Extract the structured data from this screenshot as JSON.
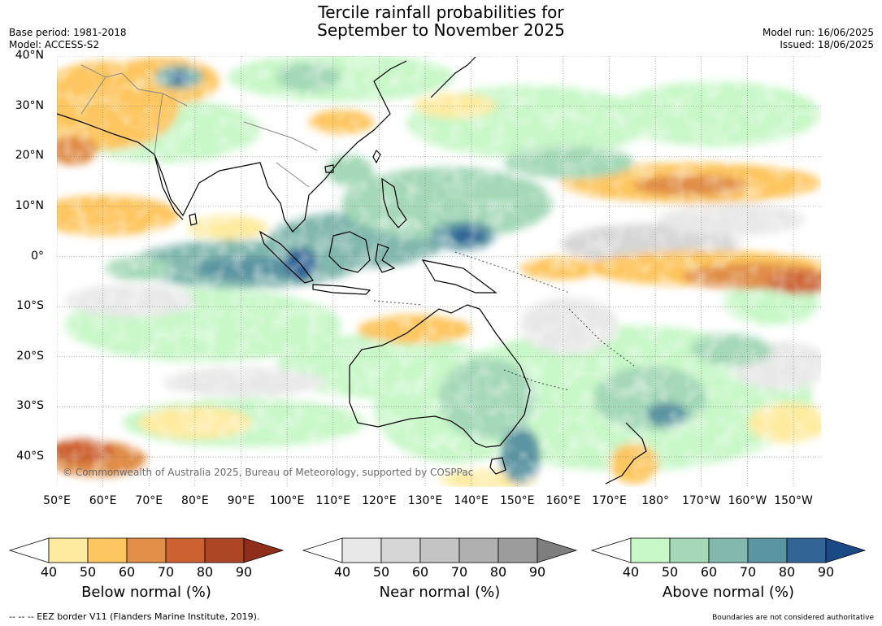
{
  "header": {
    "title_line1": "Tercile rainfall probabilities for",
    "title_line2": "September to November 2025",
    "base_period": "Base period: 1981-2018",
    "model": "Model: ACCESS-S2",
    "model_run": "Model run: 16/06/2025",
    "issued": "Issued: 18/06/2025"
  },
  "map": {
    "lat_labels": [
      "40°N",
      "30°N",
      "20°N",
      "10°N",
      "0°",
      "10°S",
      "20°S",
      "30°S",
      "40°S"
    ],
    "lon_labels": [
      "50°E",
      "60°E",
      "70°E",
      "80°E",
      "90°E",
      "100°E",
      "110°E",
      "120°E",
      "130°E",
      "140°E",
      "150°E",
      "160°E",
      "170°E",
      "180°",
      "170°W",
      "160°W",
      "150°W"
    ],
    "copyright": "© Commonwealth of Australia 2025, Bureau of Meteorology, supported by COSPPac",
    "extent": {
      "lon_min": 50,
      "lon_max": 216,
      "lat_min": -46,
      "lat_max": 40
    }
  },
  "legends": [
    {
      "name": "Below normal (%)",
      "ticks": [
        "40",
        "50",
        "60",
        "70",
        "80",
        "90"
      ],
      "colors": [
        "#ffffff",
        "#feeba0",
        "#fdc660",
        "#e08e48",
        "#cc6232",
        "#ad4624",
        "#8f2e1a"
      ]
    },
    {
      "name": "Near normal (%)",
      "ticks": [
        "40",
        "50",
        "60",
        "70",
        "80",
        "90"
      ],
      "colors": [
        "#ffffff",
        "#e8e8e8",
        "#d6d6d6",
        "#c4c4c4",
        "#b0b0b0",
        "#9c9c9c",
        "#7e7e7e"
      ]
    },
    {
      "name": "Above normal (%)",
      "ticks": [
        "40",
        "50",
        "60",
        "70",
        "80",
        "90"
      ],
      "colors": [
        "#ffffff",
        "#c8f7c8",
        "#a4d8b7",
        "#82b8ae",
        "#5b95a2",
        "#326596",
        "#1a4a85"
      ]
    }
  ],
  "footer": {
    "eez": "--  --  -- EEZ border V11 (Flanders Marine Institute, 2019).",
    "disclaimer": "Boundaries are not considered authoritative"
  }
}
